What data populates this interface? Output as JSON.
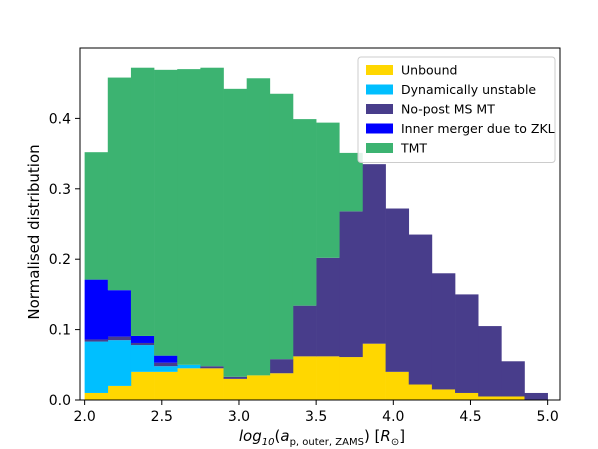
{
  "chart_data": {
    "type": "bar",
    "stacked": true,
    "histogram": true,
    "xlabel": "log10(a_p,outer,ZAMS) [R_sun]",
    "ylabel": "Normalised distribution",
    "xlim": [
      1.97,
      5.08
    ],
    "ylim": [
      0,
      0.5
    ],
    "xticks": [
      2.0,
      2.5,
      3.0,
      3.5,
      4.0,
      4.5,
      5.0
    ],
    "xtick_labels": [
      "2.0",
      "2.5",
      "3.0",
      "3.5",
      "4.0",
      "4.5",
      "5.0"
    ],
    "yticks": [
      0.0,
      0.1,
      0.2,
      0.3,
      0.4
    ],
    "ytick_labels": [
      "0.0",
      "0.1",
      "0.2",
      "0.3",
      "0.4"
    ],
    "grid": false,
    "legend_position": "top-right",
    "bin_edges": [
      2.0,
      2.15,
      2.3,
      2.45,
      2.6,
      2.75,
      2.9,
      3.05,
      3.2,
      3.35,
      3.5,
      3.65,
      3.8,
      3.95,
      4.1,
      4.25,
      4.4,
      4.55,
      4.7,
      4.85,
      5.0
    ],
    "series": [
      {
        "name": "Unbound",
        "color": "#ffd700",
        "values": [
          0.01,
          0.02,
          0.04,
          0.04,
          0.045,
          0.045,
          0.03,
          0.035,
          0.038,
          0.062,
          0.062,
          0.061,
          0.08,
          0.04,
          0.022,
          0.015,
          0.01,
          0.005,
          0.005,
          0.0
        ]
      },
      {
        "name": "Dynamically unstable",
        "color": "#00bfff",
        "values": [
          0.073,
          0.065,
          0.038,
          0.008,
          0.005,
          0.0,
          0.0,
          0.0,
          0.0,
          0.0,
          0.0,
          0.0,
          0.0,
          0.0,
          0.0,
          0.0,
          0.0,
          0.0,
          0.0,
          0.0
        ]
      },
      {
        "name": "No-post MS MT",
        "color": "#483d8b",
        "values": [
          0.003,
          0.005,
          0.003,
          0.005,
          0.0,
          0.003,
          0.003,
          0.0,
          0.02,
          0.072,
          0.14,
          0.207,
          0.255,
          0.232,
          0.213,
          0.165,
          0.14,
          0.1,
          0.05,
          0.01
        ]
      },
      {
        "name": "Inner merger due to ZKL",
        "color": "#0000ff",
        "values": [
          0.085,
          0.066,
          0.01,
          0.01,
          0.0,
          0.0,
          0.0,
          0.0,
          0.0,
          0.0,
          0.0,
          0.0,
          0.0,
          0.0,
          0.0,
          0.0,
          0.0,
          0.0,
          0.0,
          0.0
        ]
      },
      {
        "name": "TMT",
        "color": "#3cb371",
        "values": [
          0.181,
          0.302,
          0.381,
          0.406,
          0.42,
          0.424,
          0.409,
          0.422,
          0.377,
          0.265,
          0.192,
          0.083,
          0.0,
          0.0,
          0.0,
          0.0,
          0.0,
          0.0,
          0.0,
          0.0
        ]
      }
    ],
    "legend_order": [
      "Unbound",
      "Dynamically unstable",
      "No-post MS MT",
      "Inner merger due to ZKL",
      "TMT"
    ]
  }
}
